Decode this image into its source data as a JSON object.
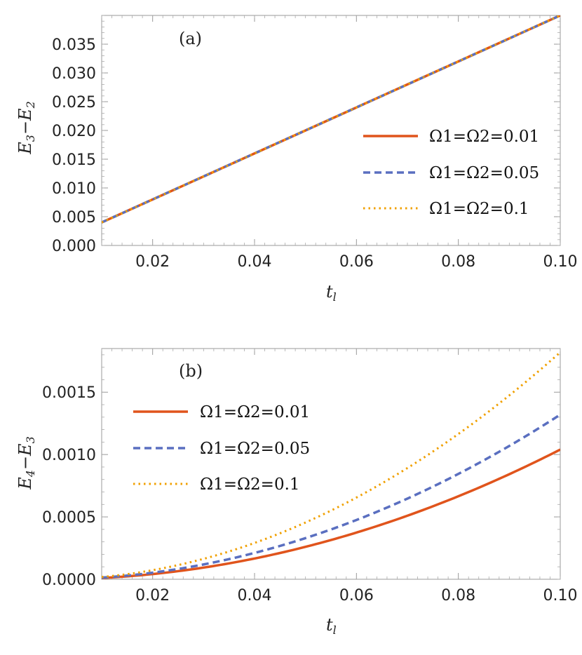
{
  "chart_data": [
    {
      "type": "line",
      "panel_label": "(a)",
      "xlabel": "t_l",
      "ylabel": "E3−E2",
      "xlim": [
        0.01,
        0.1
      ],
      "ylim": [
        0.0,
        0.04
      ],
      "xticks": [
        "0.02",
        "0.04",
        "0.06",
        "0.08",
        "0.10"
      ],
      "yticks": [
        "0.000",
        "0.005",
        "0.010",
        "0.015",
        "0.020",
        "0.025",
        "0.030",
        "0.035"
      ],
      "legend_position": "center-right",
      "series": [
        {
          "name": "Ω1=Ω2=0.01",
          "style": "solid",
          "color": "#e0541c",
          "x": [
            0.01,
            0.1
          ],
          "y": [
            0.004,
            0.04
          ]
        },
        {
          "name": "Ω1=Ω2=0.05",
          "style": "dashed",
          "color": "#5a6fc0",
          "x": [
            0.01,
            0.1
          ],
          "y": [
            0.004,
            0.04
          ]
        },
        {
          "name": "Ω1=Ω2=0.1",
          "style": "dotted",
          "color": "#f0a000",
          "x": [
            0.01,
            0.1
          ],
          "y": [
            0.004,
            0.04
          ]
        }
      ]
    },
    {
      "type": "line",
      "panel_label": "(b)",
      "xlabel": "t_l",
      "ylabel": "E4−E3",
      "xlim": [
        0.01,
        0.1
      ],
      "ylim": [
        0.0,
        0.00185
      ],
      "xticks": [
        "0.02",
        "0.04",
        "0.06",
        "0.08",
        "0.10"
      ],
      "yticks": [
        "0.0000",
        "0.0005",
        "0.0010",
        "0.0015"
      ],
      "legend_position": "top-left",
      "series": [
        {
          "name": "Ω1=Ω2=0.01",
          "style": "solid",
          "color": "#e0541c",
          "coef": 0.104
        },
        {
          "name": "Ω1=Ω2=0.05",
          "style": "dashed",
          "color": "#5a6fc0",
          "coef": 0.132
        },
        {
          "name": "Ω1=Ω2=0.1",
          "style": "dotted",
          "color": "#f0a000",
          "coef": 0.182
        }
      ]
    }
  ]
}
